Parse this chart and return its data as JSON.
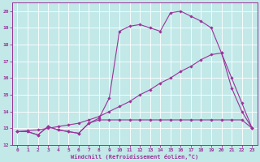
{
  "xlabel": "Windchill (Refroidissement éolien,°C)",
  "bg_color": "#c2e8e8",
  "line_color": "#993399",
  "grid_color": "#ffffff",
  "xlim": [
    -0.5,
    23.5
  ],
  "ylim": [
    12,
    20.5
  ],
  "xticks": [
    0,
    1,
    2,
    3,
    4,
    5,
    6,
    7,
    8,
    9,
    10,
    11,
    12,
    13,
    14,
    15,
    16,
    17,
    18,
    19,
    20,
    21,
    22,
    23
  ],
  "yticks": [
    12,
    13,
    14,
    15,
    16,
    17,
    18,
    19,
    20
  ],
  "curve1_x": [
    0,
    1,
    2,
    3,
    4,
    5,
    6,
    7,
    8,
    9,
    10,
    11,
    12,
    13,
    14,
    15,
    16,
    17,
    18,
    19,
    20,
    21,
    22,
    23
  ],
  "curve1_y": [
    12.8,
    12.8,
    12.6,
    13.1,
    12.9,
    12.8,
    12.7,
    13.3,
    13.6,
    14.8,
    18.8,
    19.1,
    19.2,
    19.0,
    18.8,
    19.9,
    20.0,
    19.7,
    19.4,
    19.0,
    17.5,
    15.4,
    14.0,
    13.0
  ],
  "curve2_x": [
    0,
    1,
    2,
    3,
    4,
    5,
    6,
    7,
    8,
    9,
    10,
    11,
    12,
    13,
    14,
    15,
    16,
    17,
    18,
    19,
    20,
    21,
    22,
    23
  ],
  "curve2_y": [
    12.8,
    12.85,
    12.9,
    13.0,
    13.1,
    13.2,
    13.3,
    13.5,
    13.7,
    14.0,
    14.3,
    14.6,
    15.0,
    15.3,
    15.7,
    16.0,
    16.4,
    16.7,
    17.1,
    17.4,
    17.5,
    16.0,
    14.5,
    13.0
  ],
  "curve3_x": [
    0,
    1,
    2,
    3,
    4,
    5,
    6,
    7,
    8,
    9,
    10,
    11,
    12,
    13,
    14,
    15,
    16,
    17,
    18,
    19,
    20,
    21,
    22,
    23
  ],
  "curve3_y": [
    12.8,
    12.8,
    12.6,
    13.1,
    12.9,
    12.8,
    12.7,
    13.3,
    13.5,
    13.5,
    13.5,
    13.5,
    13.5,
    13.5,
    13.5,
    13.5,
    13.5,
    13.5,
    13.5,
    13.5,
    13.5,
    13.5,
    13.5,
    13.0
  ]
}
